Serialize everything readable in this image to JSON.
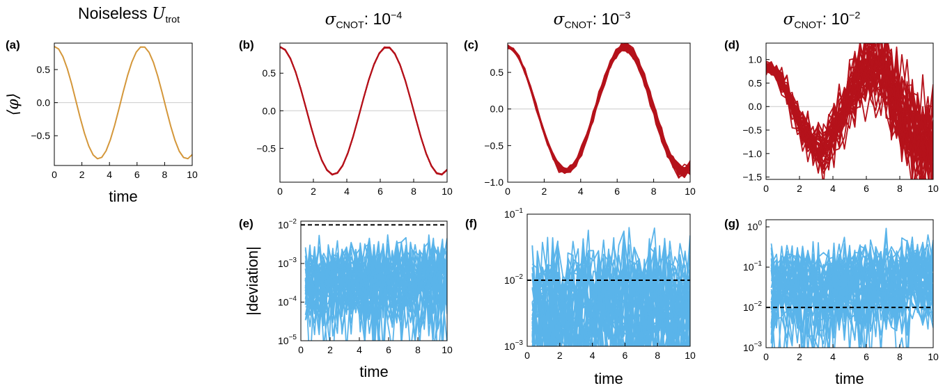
{
  "headers": {
    "noiseless": {
      "prefix": "Noiseless ",
      "sym": "U",
      "sub": "trot"
    },
    "sigma_symbol": "σ",
    "sigma_sub": "CNOT",
    "sep": ": ",
    "b": {
      "base": "10",
      "exp": "−4"
    },
    "c": {
      "base": "10",
      "exp": "−3"
    },
    "d": {
      "base": "10",
      "exp": "−2"
    }
  },
  "colors": {
    "noiseless": "#d4973a",
    "noisy": "#b5121b",
    "deviation": "#5ab4ea",
    "zero_line": "#cccccc",
    "threshold": "#000000"
  },
  "chart_data": [
    {
      "id": "a",
      "panel_label": "(a)",
      "type": "line",
      "xlabel": "time",
      "ylabel": "⟨φ⟩",
      "xlim": [
        0,
        10
      ],
      "ylim": [
        -0.95,
        0.9
      ],
      "xticks": [
        0,
        2,
        4,
        6,
        8,
        10
      ],
      "yticks": [
        -0.5,
        0.0,
        0.5
      ],
      "ytick_labels": [
        "−0.5",
        "0.0",
        "0.5"
      ],
      "zero_line": true,
      "series": [
        {
          "mode": "ideal",
          "amplitude": 0.85,
          "period": 6.4,
          "count": 1
        }
      ]
    },
    {
      "id": "b",
      "panel_label": "(b)",
      "type": "line",
      "xlabel": "",
      "xlim": [
        0,
        10
      ],
      "ylim": [
        -0.95,
        0.9
      ],
      "xticks": [
        0,
        2,
        4,
        6,
        8,
        10
      ],
      "yticks": [
        -0.5,
        0.0,
        0.5
      ],
      "ytick_labels": [
        "−0.5",
        "0.0",
        "0.5"
      ],
      "zero_line": true,
      "series": [
        {
          "mode": "noisy",
          "amplitude": 0.85,
          "period": 6.4,
          "sigma": 0.0001,
          "count": 40
        }
      ]
    },
    {
      "id": "c",
      "panel_label": "(c)",
      "type": "line",
      "xlabel": "",
      "xlim": [
        0,
        10
      ],
      "ylim": [
        -1.0,
        0.9
      ],
      "xticks": [
        0,
        2,
        4,
        6,
        8,
        10
      ],
      "yticks": [
        -1.0,
        -0.5,
        0.0,
        0.5
      ],
      "ytick_labels": [
        "−1.0",
        "−0.5",
        "0.0",
        "0.5"
      ],
      "zero_line": true,
      "series": [
        {
          "mode": "noisy",
          "amplitude": 0.85,
          "period": 6.4,
          "sigma": 0.001,
          "count": 40
        }
      ]
    },
    {
      "id": "d",
      "panel_label": "(d)",
      "type": "line",
      "xlabel": "",
      "xlim": [
        0,
        10
      ],
      "ylim": [
        -1.55,
        1.35
      ],
      "xticks": [
        0,
        2,
        4,
        6,
        8,
        10
      ],
      "yticks": [
        -1.5,
        -1.0,
        -0.5,
        0.0,
        0.5,
        1.0
      ],
      "ytick_labels": [
        "−1.5",
        "−1.0",
        "−0.5",
        "0.0",
        "0.5",
        "1.0"
      ],
      "zero_line": true,
      "series": [
        {
          "mode": "noisy",
          "amplitude": 0.85,
          "period": 6.4,
          "sigma": 0.01,
          "count": 40
        }
      ]
    },
    {
      "id": "e",
      "panel_label": "(e)",
      "type": "line",
      "xlabel": "time",
      "ylabel": "|deviation|",
      "log": true,
      "xlim": [
        0,
        10
      ],
      "ylim": [
        1e-05,
        0.0125
      ],
      "xticks": [
        0,
        2,
        4,
        6,
        8,
        10
      ],
      "yticks": [
        -5,
        -4,
        -3,
        -2
      ],
      "threshold": 0.01,
      "series": [
        {
          "mode": "deviation",
          "sigma": 0.0001,
          "count": 40
        }
      ]
    },
    {
      "id": "f",
      "panel_label": "(f)",
      "type": "line",
      "xlabel": "time",
      "log": true,
      "xlim": [
        0,
        10
      ],
      "ylim": [
        0.001,
        0.1
      ],
      "xticks": [
        0,
        2,
        4,
        6,
        8,
        10
      ],
      "yticks": [
        -3,
        -2,
        -1
      ],
      "threshold": 0.01,
      "series": [
        {
          "mode": "deviation",
          "sigma": 0.001,
          "count": 40
        }
      ]
    },
    {
      "id": "g",
      "panel_label": "(g)",
      "type": "line",
      "xlabel": "time",
      "log": true,
      "xlim": [
        0,
        10
      ],
      "ylim": [
        0.001,
        1.5
      ],
      "xticks": [
        0,
        2,
        4,
        6,
        8,
        10
      ],
      "yticks": [
        -3,
        -2,
        -1,
        0
      ],
      "threshold": 0.01,
      "series": [
        {
          "mode": "deviation",
          "sigma": 0.01,
          "count": 40
        }
      ]
    }
  ]
}
